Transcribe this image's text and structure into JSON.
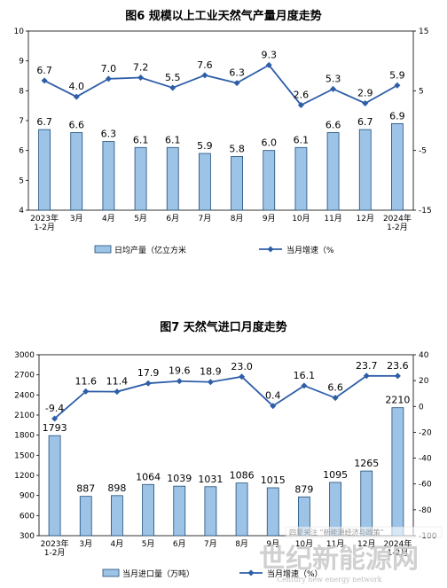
{
  "chart_data": [
    {
      "type": "bar+line",
      "title": "图6  规模以上工业天然气产量月度走势",
      "categories": [
        "2023年\n1-2月",
        "3月",
        "4月",
        "5月",
        "6月",
        "7月",
        "8月",
        "9月",
        "10月",
        "11月",
        "12月",
        "2024年\n1-2月"
      ],
      "series": [
        {
          "name": "日均产量（亿立方米",
          "type": "bar",
          "axis": "left",
          "values": [
            6.7,
            6.6,
            6.3,
            6.1,
            6.1,
            5.9,
            5.8,
            6.0,
            6.1,
            6.6,
            6.7,
            6.9
          ]
        },
        {
          "name": "当月增速（%",
          "type": "line",
          "axis": "right",
          "values": [
            6.7,
            4.0,
            7.0,
            7.2,
            5.5,
            7.6,
            6.3,
            9.3,
            2.6,
            5.3,
            2.9,
            5.9
          ]
        }
      ],
      "left_axis": {
        "min": 4,
        "max": 10,
        "ticks": [
          4,
          5,
          6,
          7,
          8,
          9,
          10
        ]
      },
      "right_axis": {
        "min": -15,
        "max": 15,
        "ticks": [
          -15,
          -5,
          5,
          15
        ]
      },
      "legend_placement": "bottom",
      "grid": false
    },
    {
      "type": "bar+line",
      "title": "图7  天然气进口月度走势",
      "categories": [
        "2023年\n1-2月",
        "3月",
        "4月",
        "5月",
        "6月",
        "7月",
        "8月",
        "9月",
        "10月",
        "11月",
        "12月",
        "2024年\n1-2月"
      ],
      "series": [
        {
          "name": "当月进口量（万吨）",
          "type": "bar",
          "axis": "left",
          "values": [
            1793,
            887,
            898,
            1064,
            1039,
            1031,
            1086,
            1015,
            879,
            1095,
            1265,
            2210
          ]
        },
        {
          "name": "当月增速（%）",
          "type": "line",
          "axis": "right",
          "values": [
            -9.4,
            11.6,
            11.4,
            17.9,
            19.6,
            18.9,
            23.0,
            0.4,
            16.1,
            6.6,
            23.7,
            23.6
          ]
        }
      ],
      "left_axis": {
        "min": 300,
        "max": 3000,
        "ticks": [
          300,
          600,
          900,
          1200,
          1500,
          1800,
          2100,
          2400,
          2700,
          3000
        ]
      },
      "right_axis": {
        "min": -100,
        "max": 40,
        "ticks": [
          -100,
          -80,
          -60,
          -40,
          -20,
          0,
          20,
          40
        ]
      },
      "legend_placement": "bottom",
      "grid": false
    }
  ],
  "colors": {
    "bar_fill": "#9dc3e6",
    "bar_stroke": "#1f4e79",
    "line": "#2e5ea8",
    "axis": "#000000"
  },
  "watermark": {
    "tag": "四夏关注 “新能源经济与政策”",
    "main": "世纪新能源网",
    "sub": "Century new energy network"
  }
}
